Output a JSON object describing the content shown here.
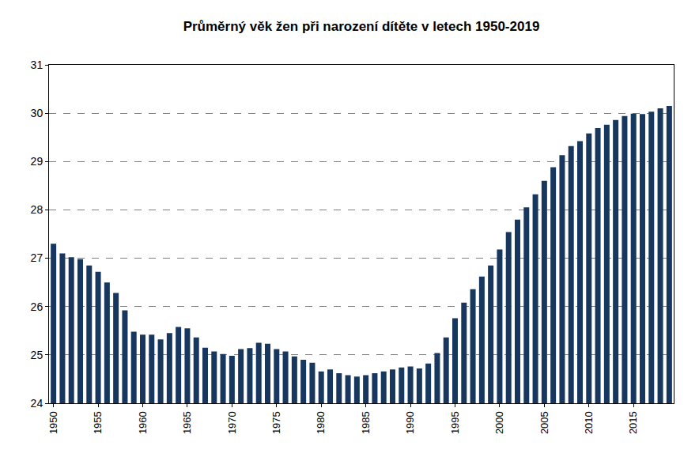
{
  "chart_data": {
    "type": "bar",
    "title": "Průměrný věk žen při narození dítěte v letech 1950-2019",
    "x": [
      1950,
      1951,
      1952,
      1953,
      1954,
      1955,
      1956,
      1957,
      1958,
      1959,
      1960,
      1961,
      1962,
      1963,
      1964,
      1965,
      1966,
      1967,
      1968,
      1969,
      1970,
      1971,
      1972,
      1973,
      1974,
      1975,
      1976,
      1977,
      1978,
      1979,
      1980,
      1981,
      1982,
      1983,
      1984,
      1985,
      1986,
      1987,
      1988,
      1989,
      1990,
      1991,
      1992,
      1993,
      1994,
      1995,
      1996,
      1997,
      1998,
      1999,
      2000,
      2001,
      2002,
      2003,
      2004,
      2005,
      2006,
      2007,
      2008,
      2009,
      2010,
      2011,
      2012,
      2013,
      2014,
      2015,
      2016,
      2017,
      2018,
      2019
    ],
    "values": [
      27.3,
      27.1,
      27.02,
      26.98,
      26.85,
      26.72,
      26.5,
      26.28,
      25.92,
      25.48,
      25.42,
      25.42,
      25.32,
      25.45,
      25.58,
      25.55,
      25.36,
      25.15,
      25.07,
      25.02,
      24.98,
      25.12,
      25.14,
      25.25,
      25.23,
      25.12,
      25.07,
      24.97,
      24.9,
      24.84,
      24.66,
      24.7,
      24.62,
      24.58,
      24.55,
      24.58,
      24.62,
      24.66,
      24.7,
      24.74,
      24.76,
      24.72,
      24.82,
      25.04,
      25.36,
      25.76,
      26.08,
      26.36,
      26.62,
      26.85,
      27.18,
      27.54,
      27.8,
      28.05,
      28.32,
      28.6,
      28.88,
      29.13,
      29.32,
      29.42,
      29.58,
      29.69,
      29.76,
      29.86,
      29.94,
      29.99,
      29.98,
      30.03,
      30.1,
      30.15
    ],
    "color": "#17375e",
    "xlim": [
      1949.5,
      2019.5
    ],
    "xticks": [
      1950,
      1955,
      1960,
      1965,
      1970,
      1975,
      1980,
      1985,
      1990,
      1995,
      2000,
      2005,
      2010,
      2015
    ],
    "ylim": [
      24,
      31
    ],
    "yticks": [
      24,
      25,
      26,
      27,
      28,
      29,
      30,
      31
    ],
    "grid": true
  }
}
